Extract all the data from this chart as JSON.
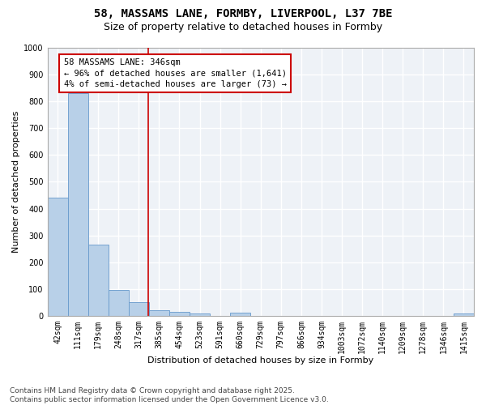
{
  "title_line1": "58, MASSAMS LANE, FORMBY, LIVERPOOL, L37 7BE",
  "title_line2": "Size of property relative to detached houses in Formby",
  "xlabel": "Distribution of detached houses by size in Formby",
  "ylabel": "Number of detached properties",
  "categories": [
    "42sqm",
    "111sqm",
    "179sqm",
    "248sqm",
    "317sqm",
    "385sqm",
    "454sqm",
    "523sqm",
    "591sqm",
    "660sqm",
    "729sqm",
    "797sqm",
    "866sqm",
    "934sqm",
    "1003sqm",
    "1072sqm",
    "1140sqm",
    "1209sqm",
    "1278sqm",
    "1346sqm",
    "1415sqm"
  ],
  "values": [
    440,
    830,
    265,
    95,
    50,
    22,
    15,
    10,
    0,
    12,
    0,
    0,
    0,
    0,
    0,
    0,
    0,
    0,
    0,
    0,
    10
  ],
  "bar_color": "#b8d0e8",
  "bar_edge_color": "#6699cc",
  "background_color": "#eef2f7",
  "grid_color": "#ffffff",
  "vline_x": 4.45,
  "vline_color": "#cc0000",
  "annotation_line1": "58 MASSAMS LANE: 346sqm",
  "annotation_line2": "← 96% of detached houses are smaller (1,641)",
  "annotation_line3": "4% of semi-detached houses are larger (73) →",
  "annotation_box_color": "#cc0000",
  "ylim": [
    0,
    1000
  ],
  "yticks": [
    0,
    100,
    200,
    300,
    400,
    500,
    600,
    700,
    800,
    900,
    1000
  ],
  "footer": "Contains HM Land Registry data © Crown copyright and database right 2025.\nContains public sector information licensed under the Open Government Licence v3.0.",
  "title_fontsize": 10,
  "subtitle_fontsize": 9,
  "axis_label_fontsize": 8,
  "tick_fontsize": 7,
  "annotation_fontsize": 7.5,
  "footer_fontsize": 6.5
}
